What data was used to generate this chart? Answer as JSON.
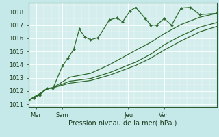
{
  "background_color": "#c5e8e8",
  "plot_bg_color": "#d4eded",
  "grid_color": "#ffffff",
  "line_color": "#2d6a2d",
  "title": "Pression niveau de la mer( hPa )",
  "ylim": [
    1010.8,
    1018.7
  ],
  "yticks": [
    1011,
    1012,
    1013,
    1014,
    1015,
    1016,
    1017,
    1018
  ],
  "xtick_labels": [
    "Mer",
    "Sam",
    "Jeu",
    "Ven"
  ],
  "vline_x": [
    0.08,
    0.22,
    0.57,
    0.76
  ],
  "xtick_x": [
    0.04,
    0.18,
    0.53,
    0.72
  ],
  "series1_x": [
    0.0,
    0.03,
    0.06,
    0.1,
    0.13,
    0.18,
    0.21,
    0.24,
    0.27,
    0.3,
    0.33,
    0.37,
    0.43,
    0.47,
    0.5,
    0.54,
    0.57,
    0.62,
    0.65,
    0.68,
    0.72,
    0.76,
    0.81,
    0.86,
    0.91,
    1.0
  ],
  "series1_y": [
    1011.3,
    1011.5,
    1011.7,
    1012.2,
    1012.2,
    1013.9,
    1014.5,
    1015.15,
    1016.7,
    1016.1,
    1015.9,
    1016.05,
    1017.4,
    1017.55,
    1017.25,
    1018.1,
    1018.35,
    1017.5,
    1017.0,
    1017.0,
    1017.5,
    1017.0,
    1018.3,
    1018.35,
    1017.8,
    1017.9
  ],
  "series2_x": [
    0.0,
    0.03,
    0.06,
    0.1,
    0.13,
    0.22,
    0.33,
    0.43,
    0.57,
    0.65,
    0.72,
    0.81,
    0.91,
    1.0
  ],
  "series2_y": [
    1011.3,
    1011.55,
    1011.8,
    1012.2,
    1012.25,
    1013.05,
    1013.35,
    1014.0,
    1015.1,
    1015.7,
    1016.35,
    1017.05,
    1017.6,
    1017.9
  ],
  "series3_x": [
    0.0,
    0.03,
    0.06,
    0.1,
    0.13,
    0.22,
    0.33,
    0.43,
    0.57,
    0.65,
    0.72,
    0.81,
    0.91,
    1.0
  ],
  "series3_y": [
    1011.3,
    1011.55,
    1011.8,
    1012.2,
    1012.25,
    1012.75,
    1012.95,
    1013.4,
    1014.2,
    1014.8,
    1015.5,
    1016.2,
    1016.85,
    1017.2
  ],
  "series4_x": [
    0.0,
    0.03,
    0.06,
    0.1,
    0.13,
    0.22,
    0.33,
    0.43,
    0.57,
    0.65,
    0.72,
    0.81,
    0.91,
    1.0
  ],
  "series4_y": [
    1011.3,
    1011.55,
    1011.8,
    1012.2,
    1012.25,
    1012.6,
    1012.8,
    1013.2,
    1013.95,
    1014.5,
    1015.1,
    1015.8,
    1016.5,
    1016.9
  ]
}
